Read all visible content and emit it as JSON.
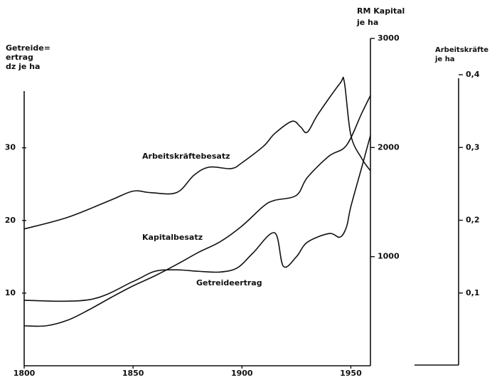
{
  "chart_data": {
    "type": "line",
    "ylabel": [
      "Getreide=",
      "ertrag",
      "dz je ha"
    ],
    "y2label": [
      "RM Kapital",
      "je ha"
    ],
    "y3label": [
      "Arbeitskräfte",
      "je ha"
    ],
    "xlim": [
      1800,
      1959
    ],
    "xticks": [
      1800,
      1850,
      1900,
      1950
    ],
    "ylim": [
      0,
      38
    ],
    "yticks": [
      10,
      20,
      30
    ],
    "y2lim": [
      0,
      3000
    ],
    "y2ticks": [
      1000,
      2000,
      3000
    ],
    "y3lim": [
      0,
      0.4
    ],
    "y3ticks": [
      {
        "value": 0.1,
        "label": "0,1"
      },
      {
        "value": 0.2,
        "label": "0,2"
      },
      {
        "value": 0.3,
        "label": "0,3"
      },
      {
        "value": 0.4,
        "label": "0,4"
      }
    ],
    "series": [
      {
        "name": "Arbeitskräftebesatz",
        "color": "#111111",
        "axis": "y3",
        "x": [
          1800,
          1820,
          1840,
          1850,
          1858,
          1870,
          1878,
          1885,
          1895,
          1900,
          1910,
          1915,
          1923,
          1927,
          1930,
          1935,
          1945,
          1947,
          1950,
          1955,
          1959
        ],
        "values": [
          0.188,
          0.204,
          0.228,
          0.24,
          0.238,
          0.238,
          0.262,
          0.273,
          0.271,
          0.279,
          0.302,
          0.319,
          0.336,
          0.328,
          0.321,
          0.346,
          0.388,
          0.39,
          0.317,
          0.285,
          0.268
        ]
      },
      {
        "name": "Kapitalbesatz",
        "color": "#111111",
        "axis": "y2",
        "x": [
          1800,
          1810,
          1820,
          1830,
          1840,
          1850,
          1860,
          1870,
          1880,
          1890,
          1900,
          1910,
          1915,
          1925,
          1930,
          1940,
          1948,
          1955,
          1959
        ],
        "values": [
          366,
          366,
          418,
          516,
          627,
          732,
          824,
          928,
          1039,
          1137,
          1281,
          1464,
          1516,
          1562,
          1725,
          1922,
          2020,
          2314,
          2477
        ]
      },
      {
        "name": "Getreideertrag",
        "color": "#111111",
        "axis": "y",
        "x": [
          1800,
          1830,
          1850,
          1860,
          1870,
          1880,
          1890,
          1898,
          1905,
          1915,
          1919,
          1925,
          1930,
          1940,
          1945,
          1948,
          1950,
          1955,
          1959
        ],
        "values": [
          9.0,
          9.1,
          11.6,
          13.0,
          13.2,
          13.0,
          12.9,
          13.5,
          15.5,
          18.3,
          13.7,
          15.0,
          17.0,
          18.2,
          17.7,
          19.1,
          21.9,
          27.3,
          31.7
        ]
      }
    ]
  }
}
